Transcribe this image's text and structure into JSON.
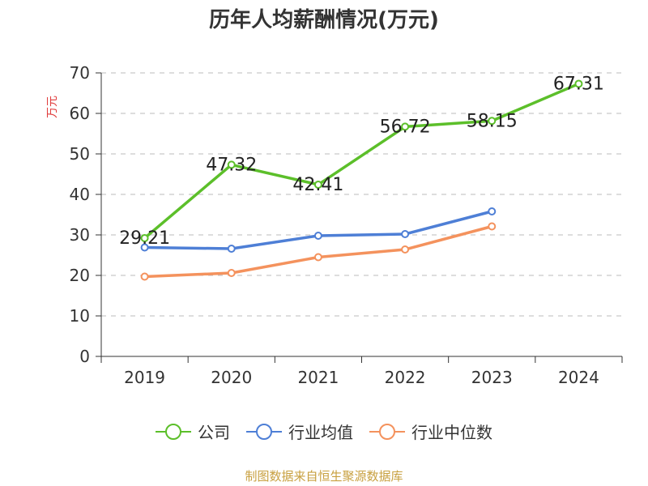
{
  "chart_data": {
    "type": "line",
    "title": "历年人均薪酬情况(万元)",
    "ylabel": "万元",
    "xlabel": "",
    "categories": [
      "2019",
      "2020",
      "2021",
      "2022",
      "2023",
      "2024"
    ],
    "ylim": [
      0,
      70
    ],
    "yticks": [
      0,
      10,
      20,
      30,
      40,
      50,
      60,
      70
    ],
    "grid": true,
    "legend_position": "bottom",
    "series": [
      {
        "name": "公司",
        "color": "#5cbf2a",
        "values": [
          29.21,
          47.32,
          42.41,
          56.72,
          58.15,
          67.31
        ],
        "show_labels": true
      },
      {
        "name": "行业均值",
        "color": "#4e7fd6",
        "values": [
          26.9,
          26.6,
          29.8,
          30.2,
          35.8,
          null
        ],
        "show_labels": false
      },
      {
        "name": "行业中位数",
        "color": "#f4925d",
        "values": [
          19.7,
          20.6,
          24.5,
          26.4,
          32.1,
          null
        ],
        "show_labels": false
      }
    ]
  },
  "source": "制图数据来自恒生聚源数据库",
  "colors": {
    "title": "#333333",
    "ylabel": "#e03c3c",
    "source": "#c8a040",
    "grid": "#bbbbbb"
  }
}
